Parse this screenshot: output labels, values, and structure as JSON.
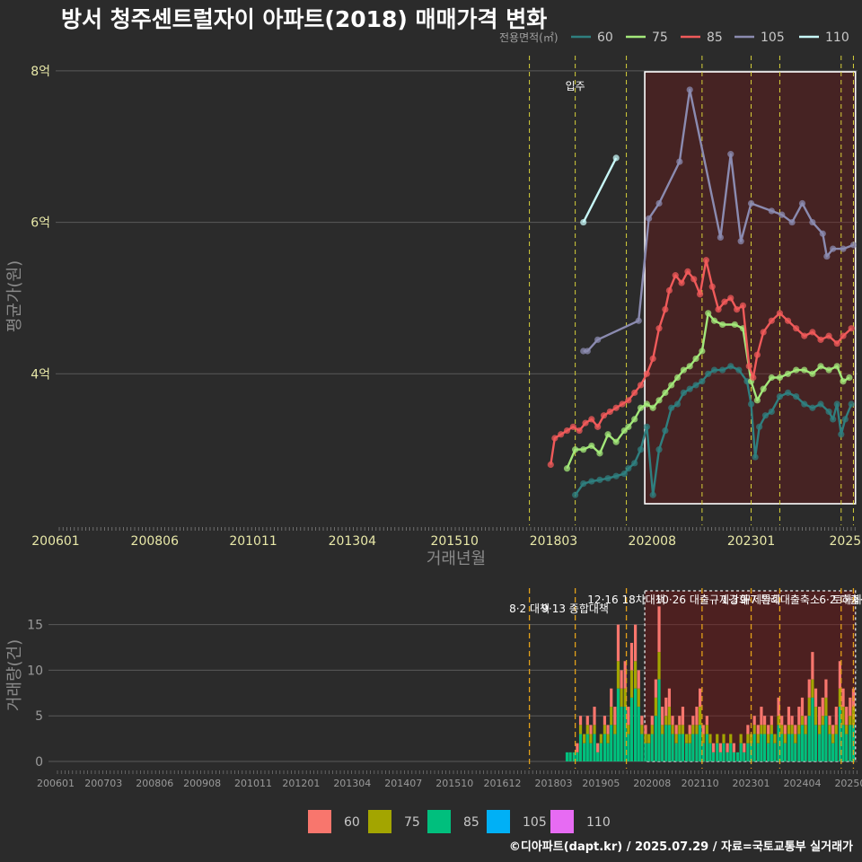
{
  "chart_data": {
    "title": "방서 청주센트럴자이 아파트(2018) 매매가격 변화",
    "footer": "©디아파트(dapt.kr) / 2025.07.29 / 자료=국토교통부 실거래가",
    "price_panel": {
      "type": "line",
      "xlabel": "거래년월",
      "ylabel": "평균가(원)",
      "x_ticks": [
        "200601",
        "200806",
        "201011",
        "201304",
        "201510",
        "201803",
        "202008",
        "202301",
        "2025"
      ],
      "y_ticks": [
        {
          "value": 4,
          "label": "4억"
        },
        {
          "value": 6,
          "label": "6억"
        },
        {
          "value": 8,
          "label": "8억"
        }
      ],
      "ylim_eok": [
        2.0,
        8.2
      ],
      "xlim_year": [
        2006.0,
        2025.6
      ],
      "legend_title": "전용면적(㎡)",
      "annotation": "입주",
      "series": [
        {
          "name": "60",
          "color": "#2f7f7f",
          "points": [
            [
              2018.7,
              2.4
            ],
            [
              2018.9,
              2.55
            ],
            [
              2019.1,
              2.58
            ],
            [
              2019.3,
              2.6
            ],
            [
              2019.5,
              2.62
            ],
            [
              2019.7,
              2.65
            ],
            [
              2019.9,
              2.68
            ],
            [
              2020.0,
              2.75
            ],
            [
              2020.15,
              2.82
            ],
            [
              2020.3,
              3.0
            ],
            [
              2020.45,
              3.3
            ],
            [
              2020.6,
              2.4
            ],
            [
              2020.75,
              3.0
            ],
            [
              2020.9,
              3.25
            ],
            [
              2021.05,
              3.55
            ],
            [
              2021.2,
              3.6
            ],
            [
              2021.35,
              3.75
            ],
            [
              2021.5,
              3.8
            ],
            [
              2021.65,
              3.85
            ],
            [
              2021.8,
              3.9
            ],
            [
              2021.95,
              4.0
            ],
            [
              2022.1,
              4.05
            ],
            [
              2022.3,
              4.05
            ],
            [
              2022.5,
              4.1
            ],
            [
              2022.7,
              4.05
            ],
            [
              2022.9,
              3.9
            ],
            [
              2023.0,
              3.6
            ],
            [
              2023.1,
              2.9
            ],
            [
              2023.2,
              3.3
            ],
            [
              2023.35,
              3.45
            ],
            [
              2023.5,
              3.5
            ],
            [
              2023.7,
              3.7
            ],
            [
              2023.9,
              3.75
            ],
            [
              2024.1,
              3.7
            ],
            [
              2024.3,
              3.6
            ],
            [
              2024.5,
              3.55
            ],
            [
              2024.7,
              3.6
            ],
            [
              2024.9,
              3.5
            ],
            [
              2025.0,
              3.4
            ],
            [
              2025.1,
              3.6
            ],
            [
              2025.2,
              3.2
            ],
            [
              2025.3,
              3.4
            ],
            [
              2025.45,
              3.6
            ]
          ]
        },
        {
          "name": "75",
          "color": "#a3e87a",
          "points": [
            [
              2018.5,
              2.75
            ],
            [
              2018.7,
              3.0
            ],
            [
              2018.9,
              3.0
            ],
            [
              2019.1,
              3.05
            ],
            [
              2019.3,
              2.95
            ],
            [
              2019.5,
              3.2
            ],
            [
              2019.7,
              3.1
            ],
            [
              2019.9,
              3.25
            ],
            [
              2020.0,
              3.3
            ],
            [
              2020.15,
              3.4
            ],
            [
              2020.3,
              3.55
            ],
            [
              2020.45,
              3.6
            ],
            [
              2020.6,
              3.55
            ],
            [
              2020.75,
              3.65
            ],
            [
              2020.9,
              3.75
            ],
            [
              2021.05,
              3.85
            ],
            [
              2021.2,
              3.95
            ],
            [
              2021.35,
              4.05
            ],
            [
              2021.5,
              4.1
            ],
            [
              2021.65,
              4.2
            ],
            [
              2021.8,
              4.3
            ],
            [
              2021.95,
              4.8
            ],
            [
              2022.1,
              4.7
            ],
            [
              2022.3,
              4.65
            ],
            [
              2022.6,
              4.65
            ],
            [
              2022.8,
              4.6
            ],
            [
              2023.0,
              3.9
            ],
            [
              2023.15,
              3.65
            ],
            [
              2023.3,
              3.8
            ],
            [
              2023.5,
              3.95
            ],
            [
              2023.7,
              3.95
            ],
            [
              2023.9,
              4.0
            ],
            [
              2024.1,
              4.05
            ],
            [
              2024.3,
              4.05
            ],
            [
              2024.5,
              4.0
            ],
            [
              2024.7,
              4.1
            ],
            [
              2024.9,
              4.05
            ],
            [
              2025.1,
              4.1
            ],
            [
              2025.25,
              3.9
            ],
            [
              2025.4,
              3.95
            ]
          ]
        },
        {
          "name": "85",
          "color": "#f05a5a",
          "points": [
            [
              2018.1,
              2.8
            ],
            [
              2018.2,
              3.15
            ],
            [
              2018.35,
              3.2
            ],
            [
              2018.5,
              3.25
            ],
            [
              2018.65,
              3.3
            ],
            [
              2018.8,
              3.25
            ],
            [
              2018.95,
              3.35
            ],
            [
              2019.1,
              3.4
            ],
            [
              2019.25,
              3.3
            ],
            [
              2019.4,
              3.45
            ],
            [
              2019.55,
              3.5
            ],
            [
              2019.7,
              3.55
            ],
            [
              2019.85,
              3.6
            ],
            [
              2020.0,
              3.65
            ],
            [
              2020.15,
              3.75
            ],
            [
              2020.3,
              3.85
            ],
            [
              2020.45,
              4.0
            ],
            [
              2020.6,
              4.2
            ],
            [
              2020.75,
              4.6
            ],
            [
              2020.9,
              4.85
            ],
            [
              2021.0,
              5.1
            ],
            [
              2021.15,
              5.3
            ],
            [
              2021.3,
              5.2
            ],
            [
              2021.45,
              5.35
            ],
            [
              2021.6,
              5.25
            ],
            [
              2021.75,
              5.05
            ],
            [
              2021.9,
              5.5
            ],
            [
              2022.05,
              5.15
            ],
            [
              2022.2,
              4.85
            ],
            [
              2022.35,
              4.95
            ],
            [
              2022.5,
              5.0
            ],
            [
              2022.65,
              4.85
            ],
            [
              2022.8,
              4.9
            ],
            [
              2022.95,
              4.1
            ],
            [
              2023.05,
              3.95
            ],
            [
              2023.15,
              4.25
            ],
            [
              2023.3,
              4.55
            ],
            [
              2023.5,
              4.7
            ],
            [
              2023.7,
              4.8
            ],
            [
              2023.9,
              4.7
            ],
            [
              2024.1,
              4.6
            ],
            [
              2024.3,
              4.5
            ],
            [
              2024.5,
              4.55
            ],
            [
              2024.7,
              4.45
            ],
            [
              2024.9,
              4.5
            ],
            [
              2025.1,
              4.4
            ],
            [
              2025.25,
              4.5
            ],
            [
              2025.45,
              4.6
            ]
          ]
        },
        {
          "name": "105",
          "color": "#8b8bb0",
          "points": [
            [
              2018.9,
              4.3
            ],
            [
              2019.0,
              4.3
            ],
            [
              2019.25,
              4.45
            ],
            [
              2020.25,
              4.7
            ],
            [
              2020.5,
              6.05
            ],
            [
              2020.75,
              6.25
            ],
            [
              2021.25,
              6.8
            ],
            [
              2021.5,
              7.75
            ],
            [
              2022.25,
              5.8
            ],
            [
              2022.5,
              6.9
            ],
            [
              2022.75,
              5.75
            ],
            [
              2023.0,
              6.25
            ],
            [
              2023.5,
              6.15
            ],
            [
              2023.75,
              6.1
            ],
            [
              2024.0,
              6.0
            ],
            [
              2024.25,
              6.25
            ],
            [
              2024.5,
              6.0
            ],
            [
              2024.75,
              5.85
            ],
            [
              2024.85,
              5.55
            ],
            [
              2025.0,
              5.65
            ],
            [
              2025.25,
              5.65
            ],
            [
              2025.5,
              5.7
            ]
          ]
        },
        {
          "name": "110",
          "color": "#c7f7f7",
          "points": [
            [
              2018.9,
              6.0
            ],
            [
              2019.7,
              6.85
            ]
          ]
        }
      ]
    },
    "volume_panel": {
      "type": "bar",
      "ylabel": "거래량(건)",
      "y_ticks": [
        0,
        5,
        10,
        15
      ],
      "ylim": [
        0,
        19
      ],
      "x_ticks": [
        "200601",
        "200703",
        "200806",
        "200908",
        "201011",
        "201201",
        "201304",
        "201407",
        "201510",
        "201612",
        "201803",
        "201905",
        "202008",
        "202110",
        "202301",
        "202404",
        "202507"
      ],
      "legend": [
        {
          "name": "60",
          "color": "#f8766d"
        },
        {
          "name": "75",
          "color": "#a3a500"
        },
        {
          "name": "85",
          "color": "#00bf7d"
        },
        {
          "name": "105",
          "color": "#00b0f6"
        },
        {
          "name": "110",
          "color": "#e76bf3"
        }
      ],
      "monthly_totals": [
        [
          2018.5,
          1
        ],
        [
          2018.58,
          1
        ],
        [
          2018.67,
          1
        ],
        [
          2018.75,
          2
        ],
        [
          2018.83,
          5
        ],
        [
          2018.92,
          3
        ],
        [
          2019.0,
          5
        ],
        [
          2019.08,
          4
        ],
        [
          2019.17,
          6
        ],
        [
          2019.25,
          2
        ],
        [
          2019.33,
          3
        ],
        [
          2019.42,
          5
        ],
        [
          2019.5,
          4
        ],
        [
          2019.58,
          8
        ],
        [
          2019.67,
          6
        ],
        [
          2019.75,
          15
        ],
        [
          2019.83,
          10
        ],
        [
          2019.92,
          11
        ],
        [
          2020.0,
          6
        ],
        [
          2020.08,
          13
        ],
        [
          2020.17,
          15
        ],
        [
          2020.25,
          10
        ],
        [
          2020.33,
          5
        ],
        [
          2020.42,
          4
        ],
        [
          2020.5,
          3
        ],
        [
          2020.58,
          5
        ],
        [
          2020.67,
          9
        ],
        [
          2020.75,
          17
        ],
        [
          2020.83,
          6
        ],
        [
          2020.92,
          7
        ],
        [
          2021.0,
          8
        ],
        [
          2021.08,
          5
        ],
        [
          2021.17,
          4
        ],
        [
          2021.25,
          5
        ],
        [
          2021.33,
          6
        ],
        [
          2021.42,
          3
        ],
        [
          2021.5,
          4
        ],
        [
          2021.58,
          5
        ],
        [
          2021.67,
          6
        ],
        [
          2021.75,
          8
        ],
        [
          2021.83,
          4
        ],
        [
          2021.92,
          5
        ],
        [
          2022.0,
          3
        ],
        [
          2022.08,
          2
        ],
        [
          2022.17,
          3
        ],
        [
          2022.25,
          2
        ],
        [
          2022.33,
          3
        ],
        [
          2022.42,
          2
        ],
        [
          2022.5,
          3
        ],
        [
          2022.58,
          2
        ],
        [
          2022.67,
          1
        ],
        [
          2022.75,
          3
        ],
        [
          2022.83,
          2
        ],
        [
          2022.92,
          4
        ],
        [
          2023.0,
          3
        ],
        [
          2023.08,
          5
        ],
        [
          2023.17,
          4
        ],
        [
          2023.25,
          6
        ],
        [
          2023.33,
          5
        ],
        [
          2023.42,
          4
        ],
        [
          2023.5,
          5
        ],
        [
          2023.58,
          3
        ],
        [
          2023.67,
          7
        ],
        [
          2023.75,
          5
        ],
        [
          2023.83,
          4
        ],
        [
          2023.92,
          6
        ],
        [
          2024.0,
          5
        ],
        [
          2024.08,
          4
        ],
        [
          2024.17,
          6
        ],
        [
          2024.25,
          7
        ],
        [
          2024.33,
          5
        ],
        [
          2024.42,
          9
        ],
        [
          2024.5,
          12
        ],
        [
          2024.58,
          8
        ],
        [
          2024.67,
          6
        ],
        [
          2024.75,
          7
        ],
        [
          2024.83,
          9
        ],
        [
          2024.92,
          5
        ],
        [
          2025.0,
          4
        ],
        [
          2025.08,
          6
        ],
        [
          2025.17,
          11
        ],
        [
          2025.25,
          8
        ],
        [
          2025.33,
          6
        ],
        [
          2025.42,
          7
        ],
        [
          2025.5,
          8
        ]
      ],
      "policies": [
        {
          "year": 2017.58,
          "label": "8·2 대책"
        },
        {
          "year": 2018.7,
          "label": "9·13 종합대책"
        },
        {
          "year": 2019.95,
          "label": "12·16 18차대책"
        },
        {
          "year": 2021.8,
          "label": "10·26 대출규제강화"
        },
        {
          "year": 2023.0,
          "label": "1·3 규제완화"
        },
        {
          "year": 2023.7,
          "label": "9·7 특례대출축소"
        },
        {
          "year": 2025.2,
          "label": "6·2 대출·"
        },
        {
          "year": 2025.5,
          "label": "토허제 해"
        }
      ]
    }
  }
}
